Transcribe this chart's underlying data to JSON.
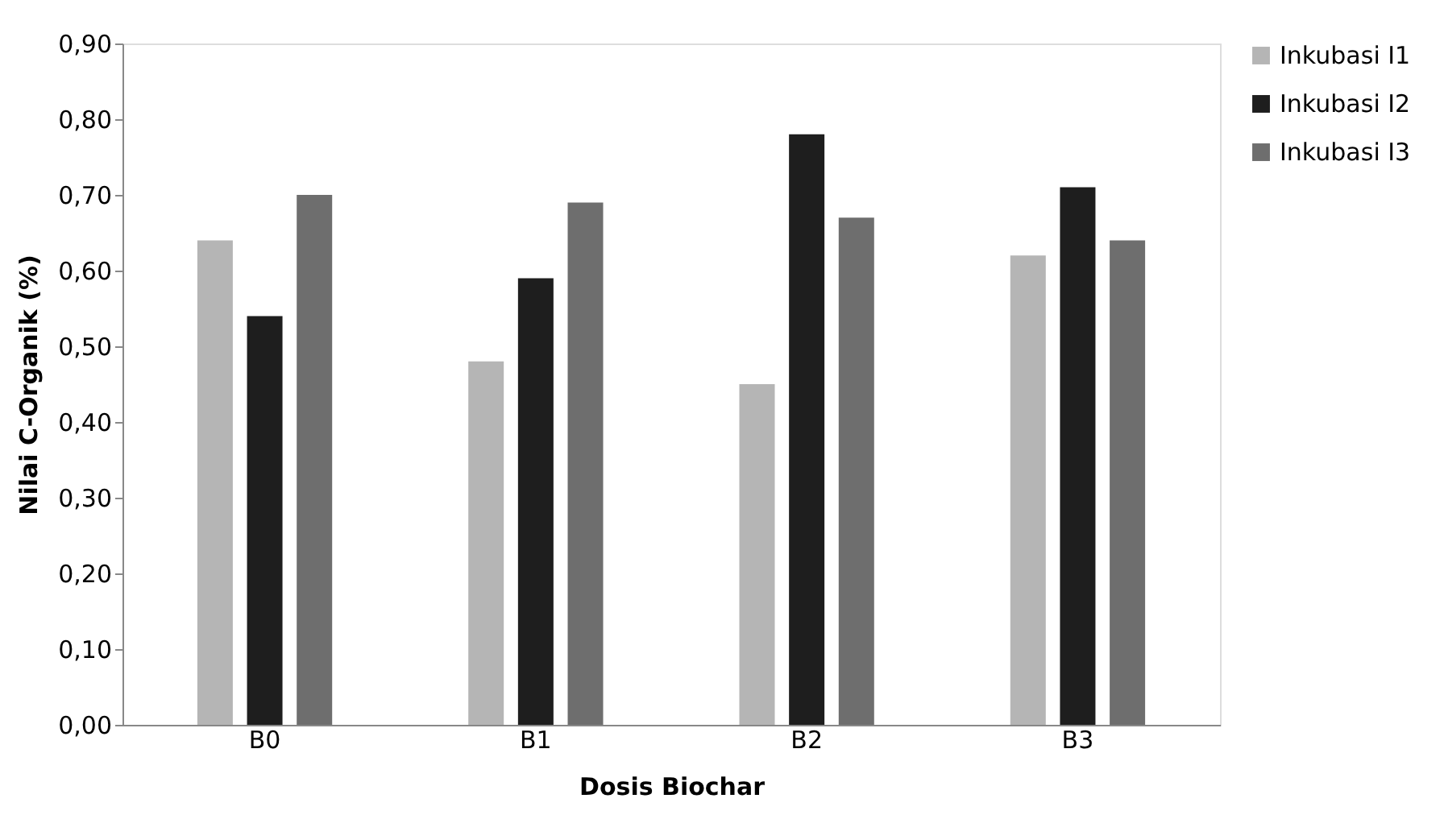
{
  "chart_data": {
    "type": "bar",
    "xlabel": "Dosis Biochar",
    "ylabel": "Nilai C-Organik (%)",
    "categories": [
      "B0",
      "B1",
      "B2",
      "B3"
    ],
    "series": [
      {
        "name": "Inkubasi I1",
        "color": "#b5b5b5",
        "values": [
          0.64,
          0.48,
          0.45,
          0.62
        ]
      },
      {
        "name": "Inkubasi I2",
        "color": "#1e1e1e",
        "values": [
          0.54,
          0.59,
          0.78,
          0.71
        ]
      },
      {
        "name": "Inkubasi I3",
        "color": "#6e6e6e",
        "values": [
          0.7,
          0.69,
          0.67,
          0.64
        ]
      }
    ],
    "ylim": [
      0,
      0.9
    ],
    "yticks": [
      {
        "value": 0,
        "label": "0,00"
      },
      {
        "value": 0.1,
        "label": "0,10"
      },
      {
        "value": 0.2,
        "label": "0,20"
      },
      {
        "value": 0.3,
        "label": "0,30"
      },
      {
        "value": 0.4,
        "label": "0,40"
      },
      {
        "value": 0.5,
        "label": "0,50"
      },
      {
        "value": 0.6,
        "label": "0,60"
      },
      {
        "value": 0.7,
        "label": "0,70"
      },
      {
        "value": 0.8,
        "label": "0,80"
      },
      {
        "value": 0.9,
        "label": "0,90"
      }
    ],
    "grid": false,
    "legend": "right"
  }
}
